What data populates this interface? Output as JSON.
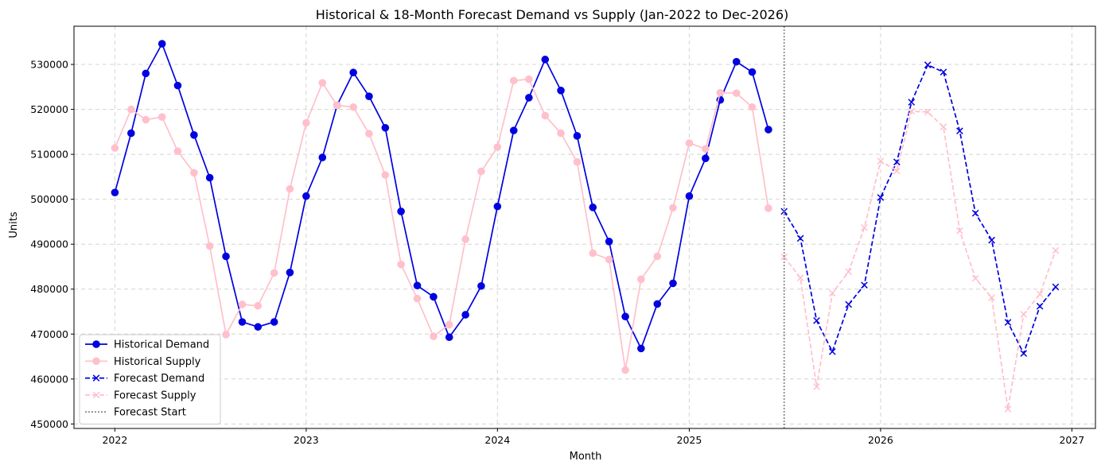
{
  "chart_data": {
    "type": "line",
    "title": "Historical & 18-Month Forecast Demand vs Supply (Jan-2022 to Dec-2026)",
    "xlabel": "Month",
    "ylabel": "Units",
    "xlim": [
      "2021-10-15",
      "2027-02-15"
    ],
    "ylim": [
      449000,
      538500
    ],
    "x_ticks": [
      "2022",
      "2023",
      "2024",
      "2025",
      "2026",
      "2027"
    ],
    "y_ticks": [
      450000,
      460000,
      470000,
      480000,
      490000,
      500000,
      510000,
      520000,
      530000
    ],
    "grid": true,
    "legend_position": "lower-left",
    "forecast_start": "2025-07",
    "forecast_start_label": "Forecast Start",
    "forecast_start_color": "#808080",
    "series": [
      {
        "name": "Historical Demand",
        "color": "#0000e0",
        "style": "solid",
        "marker": "circle",
        "x": [
          "2022-01",
          "2022-02",
          "2022-03",
          "2022-04",
          "2022-05",
          "2022-06",
          "2022-07",
          "2022-08",
          "2022-09",
          "2022-10",
          "2022-11",
          "2022-12",
          "2023-01",
          "2023-02",
          "2023-03",
          "2023-04",
          "2023-05",
          "2023-06",
          "2023-07",
          "2023-08",
          "2023-09",
          "2023-10",
          "2023-11",
          "2023-12",
          "2024-01",
          "2024-02",
          "2024-03",
          "2024-04",
          "2024-05",
          "2024-06",
          "2024-07",
          "2024-08",
          "2024-09",
          "2024-10",
          "2024-11",
          "2024-12",
          "2025-01",
          "2025-02",
          "2025-03",
          "2025-04",
          "2025-05",
          "2025-06"
        ],
        "values": [
          501500,
          514700,
          528000,
          534600,
          525300,
          514300,
          504800,
          487300,
          472700,
          471600,
          472700,
          483700,
          500700,
          509300,
          520900,
          528200,
          522900,
          515900,
          497300,
          480800,
          478300,
          469300,
          474300,
          480700,
          498400,
          515300,
          522600,
          531100,
          524200,
          514100,
          498200,
          490600,
          473900,
          466800,
          476700,
          481300,
          500700,
          509100,
          522100,
          530600,
          528300,
          515500
        ]
      },
      {
        "name": "Historical Supply",
        "color": "#ffc0cb",
        "style": "solid",
        "marker": "circle",
        "x": [
          "2022-01",
          "2022-02",
          "2022-03",
          "2022-04",
          "2022-05",
          "2022-06",
          "2022-07",
          "2022-08",
          "2022-09",
          "2022-10",
          "2022-11",
          "2022-12",
          "2023-01",
          "2023-02",
          "2023-03",
          "2023-04",
          "2023-05",
          "2023-06",
          "2023-07",
          "2023-08",
          "2023-09",
          "2023-10",
          "2023-11",
          "2023-12",
          "2024-01",
          "2024-02",
          "2024-03",
          "2024-04",
          "2024-05",
          "2024-06",
          "2024-07",
          "2024-08",
          "2024-09",
          "2024-10",
          "2024-11",
          "2024-12",
          "2025-01",
          "2025-02",
          "2025-03",
          "2025-04",
          "2025-05",
          "2025-06"
        ],
        "values": [
          511400,
          520000,
          517700,
          518300,
          510700,
          505900,
          489600,
          469900,
          476600,
          476300,
          483600,
          502300,
          517000,
          525900,
          520900,
          520500,
          514600,
          505400,
          485500,
          477900,
          469500,
          472100,
          491100,
          506200,
          511600,
          526400,
          526700,
          518600,
          514700,
          508300,
          488000,
          486600,
          462000,
          482200,
          487300,
          498100,
          512500,
          511200,
          523700,
          523600,
          520500,
          498000
        ]
      },
      {
        "name": "Forecast Demand",
        "color": "#0000e0",
        "style": "dashed",
        "marker": "x",
        "x": [
          "2025-07",
          "2025-08",
          "2025-09",
          "2025-10",
          "2025-11",
          "2025-12",
          "2026-01",
          "2026-02",
          "2026-03",
          "2026-04",
          "2026-05",
          "2026-06",
          "2026-07",
          "2026-08",
          "2026-09",
          "2026-10",
          "2026-11",
          "2026-12"
        ],
        "values": [
          497300,
          491300,
          473000,
          466100,
          476600,
          480900,
          500400,
          508300,
          521600,
          529900,
          528300,
          515200,
          496900,
          490900,
          472600,
          465700,
          476200,
          480500
        ]
      },
      {
        "name": "Forecast Supply",
        "color": "#ffc0cb",
        "style": "dashed",
        "marker": "x",
        "x": [
          "2025-07",
          "2025-08",
          "2025-09",
          "2025-10",
          "2025-11",
          "2025-12",
          "2026-01",
          "2026-02",
          "2026-03",
          "2026-04",
          "2026-05",
          "2026-06",
          "2026-07",
          "2026-08",
          "2026-09",
          "2026-10",
          "2026-11",
          "2026-12"
        ],
        "values": [
          487200,
          482500,
          458300,
          479100,
          483900,
          493700,
          508500,
          506300,
          519600,
          519400,
          516100,
          493000,
          482400,
          478100,
          453300,
          474400,
          478900,
          488600
        ]
      }
    ]
  }
}
